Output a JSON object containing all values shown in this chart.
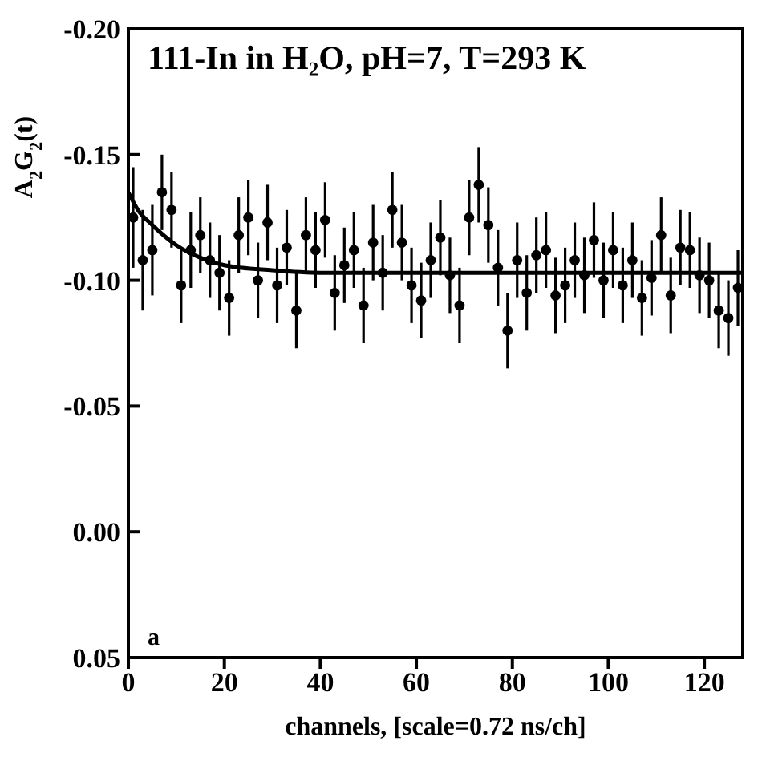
{
  "chart_data": {
    "type": "scatter",
    "ylabel": "A$_{2}$G$_{2}$(t)",
    "xlabel": "channels, [scale=0.72 ns/ch]",
    "annotations": [
      "111-In in H₂O, pH=7, T=293 K",
      "a"
    ],
    "xlim": [
      0,
      128
    ],
    "xticks": [
      0,
      20,
      40,
      60,
      80,
      100,
      120
    ],
    "ylim": [
      0.05,
      -0.2
    ],
    "yticks": [
      {
        "value": -0.2,
        "label": "-0.20"
      },
      {
        "value": -0.15,
        "label": "-0.15"
      },
      {
        "value": -0.1,
        "label": "-0.10"
      },
      {
        "value": -0.05,
        "label": "-0.05"
      },
      {
        "value": 0,
        "label": "0.00"
      },
      {
        "value": 0.05,
        "label": "0.05"
      }
    ],
    "grid": false,
    "series": [
      {
        "color": "#000000",
        "marker": "circle",
        "x": [
          1,
          3,
          5,
          7,
          9,
          11,
          13,
          15,
          17,
          19,
          21,
          23,
          25,
          27,
          29,
          31,
          33,
          35,
          37,
          39,
          41,
          43,
          45,
          47,
          49,
          51,
          53,
          55,
          57,
          59,
          61,
          63,
          65,
          67,
          69,
          71,
          73,
          75,
          77,
          79,
          81,
          83,
          85,
          87,
          89,
          91,
          93,
          95,
          97,
          99,
          101,
          103,
          105,
          107,
          109,
          111,
          113,
          115,
          117,
          119,
          121,
          123,
          125,
          127
        ],
        "values": [
          -0.125,
          -0.108,
          -0.112,
          -0.135,
          -0.128,
          -0.098,
          -0.112,
          -0.118,
          -0.108,
          -0.103,
          -0.093,
          -0.118,
          -0.125,
          -0.1,
          -0.123,
          -0.098,
          -0.113,
          -0.088,
          -0.118,
          -0.112,
          -0.124,
          -0.095,
          -0.106,
          -0.112,
          -0.09,
          -0.115,
          -0.103,
          -0.128,
          -0.115,
          -0.098,
          -0.092,
          -0.108,
          -0.117,
          -0.102,
          -0.09,
          -0.125,
          -0.138,
          -0.122,
          -0.105,
          -0.08,
          -0.108,
          -0.095,
          -0.11,
          -0.112,
          -0.094,
          -0.098,
          -0.108,
          -0.102,
          -0.116,
          -0.1,
          -0.112,
          -0.098,
          -0.108,
          -0.093,
          -0.101,
          -0.118,
          -0.094,
          -0.113,
          -0.112,
          -0.102,
          -0.1,
          -0.088,
          -0.085,
          -0.097
        ],
        "errors": [
          0.02,
          0.02,
          0.018,
          0.015,
          0.015,
          0.015,
          0.015,
          0.015,
          0.015,
          0.015,
          0.015,
          0.015,
          0.015,
          0.015,
          0.015,
          0.015,
          0.015,
          0.015,
          0.015,
          0.015,
          0.015,
          0.015,
          0.015,
          0.015,
          0.015,
          0.015,
          0.015,
          0.015,
          0.015,
          0.015,
          0.015,
          0.015,
          0.015,
          0.015,
          0.015,
          0.015,
          0.015,
          0.015,
          0.015,
          0.015,
          0.015,
          0.015,
          0.015,
          0.015,
          0.015,
          0.015,
          0.015,
          0.015,
          0.015,
          0.015,
          0.015,
          0.015,
          0.015,
          0.015,
          0.015,
          0.015,
          0.015,
          0.015,
          0.015,
          0.015,
          0.015,
          0.015,
          0.015,
          0.015
        ]
      },
      {
        "type": "line",
        "color": "#000000",
        "marker": "none",
        "line_style": "solid",
        "x": [
          0,
          2,
          5,
          10,
          15,
          20,
          30,
          40,
          60,
          128
        ],
        "values": [
          -0.135,
          -0.128,
          -0.122,
          -0.114,
          -0.109,
          -0.106,
          -0.104,
          -0.103,
          -0.103,
          -0.103
        ]
      }
    ]
  }
}
